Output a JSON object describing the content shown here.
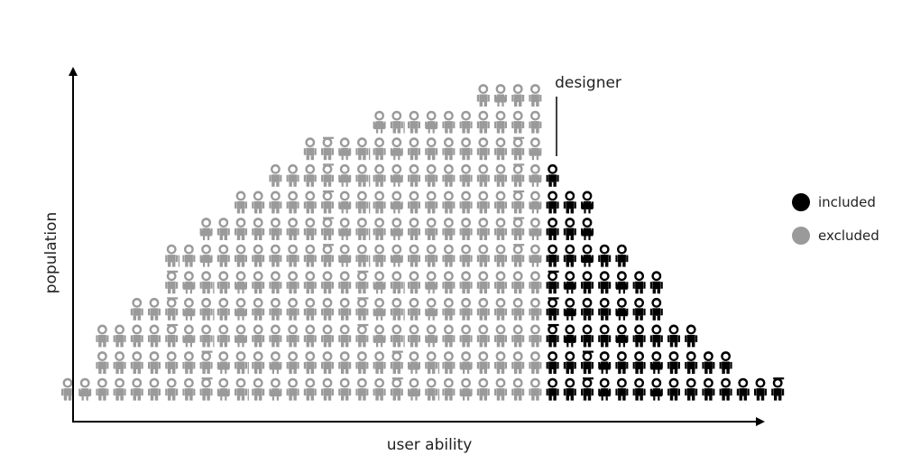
{
  "axes": {
    "y_label": "population",
    "x_label": "user ability"
  },
  "annotation": {
    "label": "designer"
  },
  "legend": {
    "items": [
      {
        "label": "included",
        "color": "#000000"
      },
      {
        "label": "excluded",
        "color": "#9a9a9a"
      }
    ]
  },
  "colors": {
    "included": "#000000",
    "excluded": "#9a9a9a",
    "axis": "#000000"
  },
  "people": {
    "rows": [
      {
        "excluded": 4,
        "included": 0
      },
      {
        "excluded": 10,
        "included": 0
      },
      {
        "excluded": 14,
        "included": 0
      },
      {
        "excluded": 16,
        "included": 1
      },
      {
        "excluded": 18,
        "included": 3
      },
      {
        "excluded": 20,
        "included": 3
      },
      {
        "excluded": 22,
        "included": 5
      },
      {
        "excluded": 22,
        "included": 7
      },
      {
        "excluded": 24,
        "included": 7
      },
      {
        "excluded": 26,
        "included": 9
      },
      {
        "excluded": 26,
        "included": 11
      },
      {
        "excluded": 28,
        "included": 14
      }
    ]
  }
}
